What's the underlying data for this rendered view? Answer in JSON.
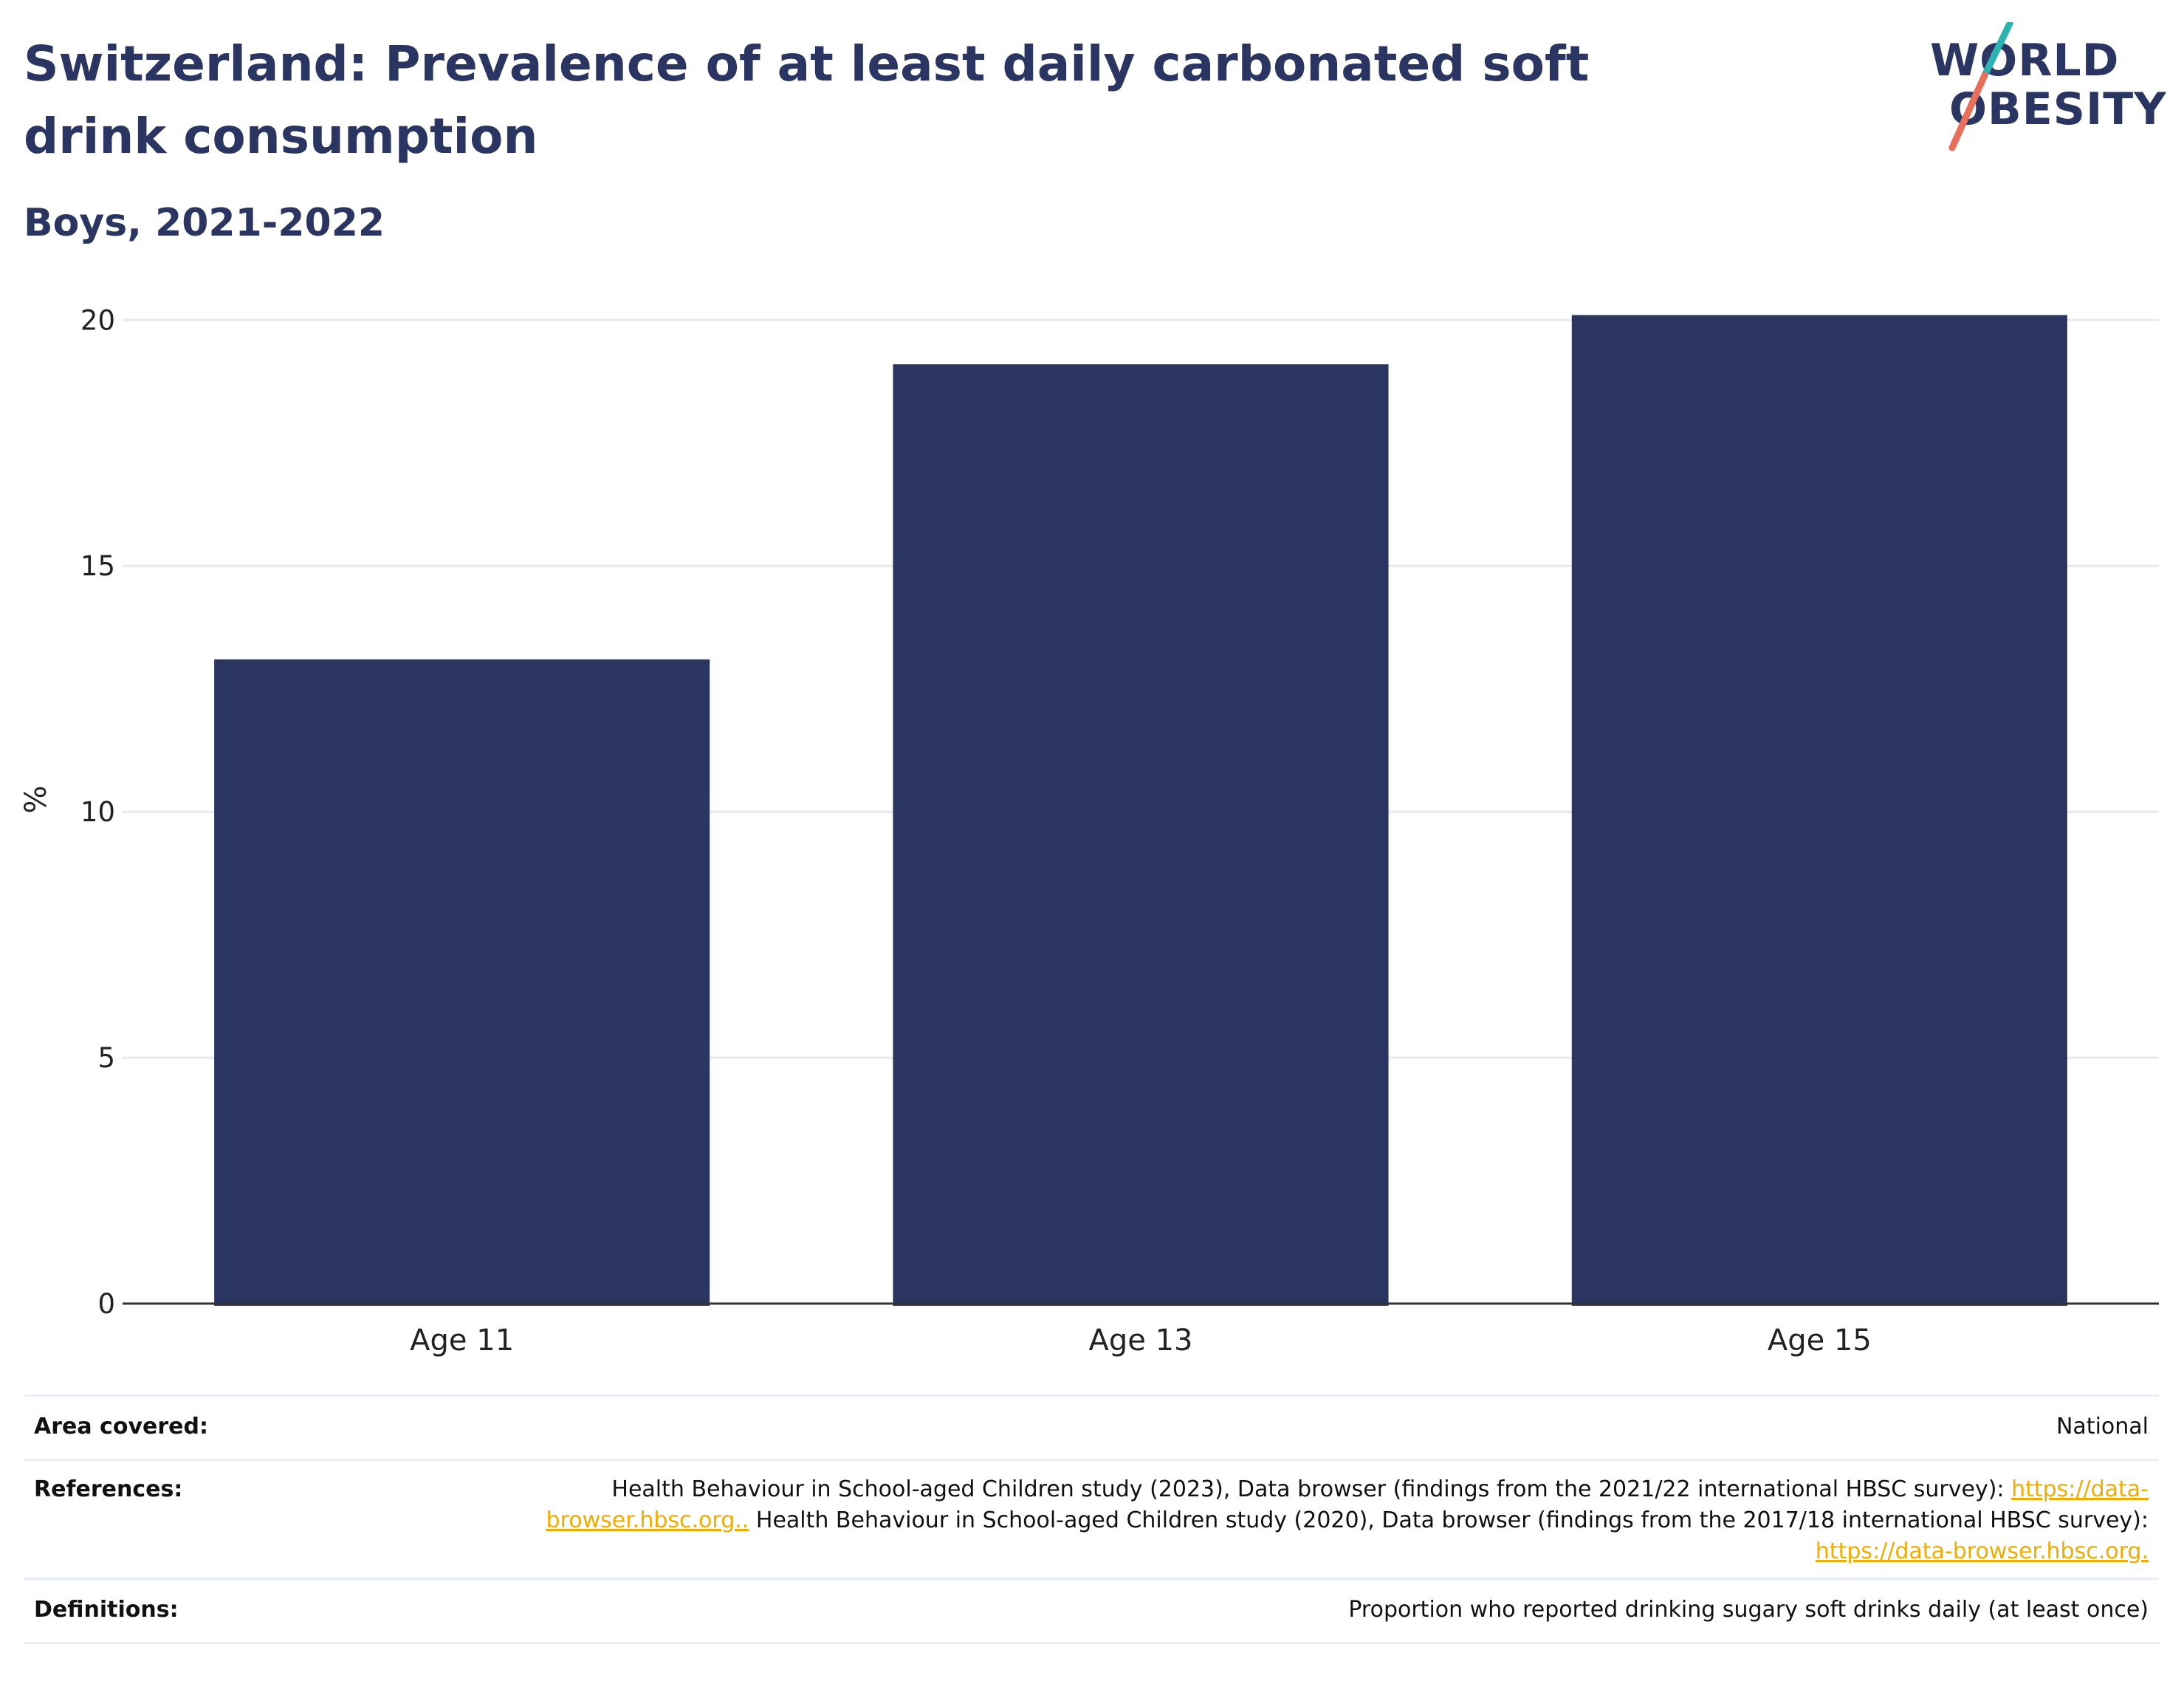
{
  "header": {
    "title": "Switzerland: Prevalence of at least daily carbonated soft drink consumption",
    "subtitle": "Boys, 2021-2022"
  },
  "logo": {
    "line1": "WORLD",
    "line2": "OBESITY",
    "colors": {
      "text": "#2a3561",
      "slash_top": "#2bb3b1",
      "slash_bottom": "#e8705b"
    }
  },
  "chart_data": {
    "type": "bar",
    "categories": [
      "Age 11",
      "Age 13",
      "Age 15"
    ],
    "values": [
      13.1,
      19.1,
      20.1
    ],
    "ylabel": "%",
    "ylim": [
      0,
      20.5
    ],
    "yticks": [
      0,
      5,
      10,
      15,
      20
    ],
    "grid": true,
    "bar_color": "#2a3561"
  },
  "info_table": {
    "area": {
      "label": "Area covered:",
      "value": "National"
    },
    "references": {
      "label": "References:",
      "text1": "Health Behaviour in School-aged Children study (2023), Data browser (findings from the 2021/22 international HBSC survey): ",
      "link1": "https://data-browser.hbsc.org..",
      "text2": " Health Behaviour in School-aged Children study (2020), Data browser (findings from the 2017/18 international HBSC survey): ",
      "link2": "https://data-browser.hbsc.org."
    },
    "definitions": {
      "label": "Definitions:",
      "value": "Proportion who reported drinking sugary soft drinks daily (at least once)"
    }
  }
}
